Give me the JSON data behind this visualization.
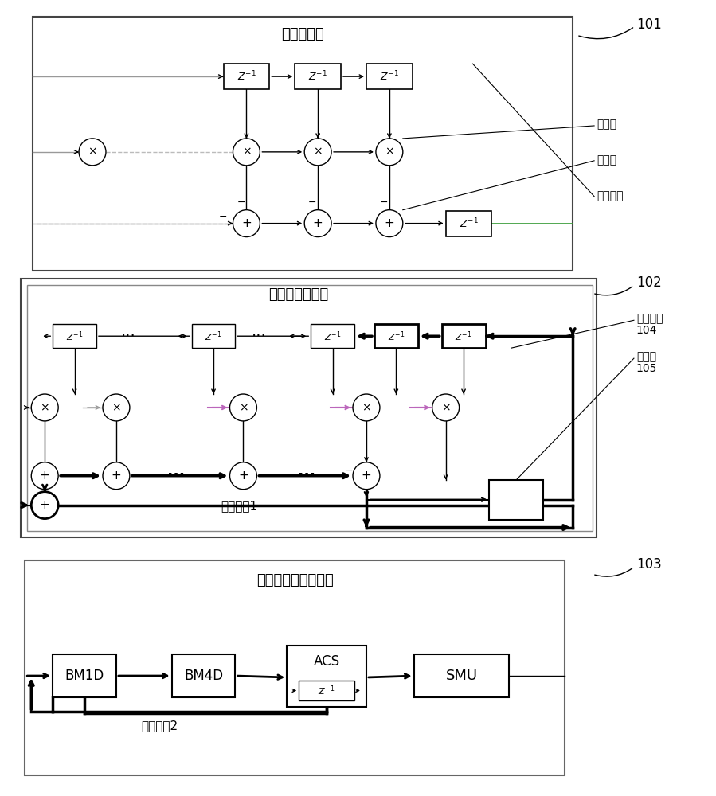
{
  "bg_color": "#ffffff",
  "block1_title": "前馈均衡器",
  "block1_label": "101",
  "block2_title": "判决反馈均衡器",
  "block2_label": "102",
  "block3_title": "并行判决反馈解码器",
  "block3_label": "103",
  "label_multiplier": "乘法器",
  "label_adder": "加法器",
  "label_delay": "延时单元",
  "label_delay104": "延时单元",
  "label_delay104_num": "104",
  "label_decider": "判决器",
  "label_decider_num": "105",
  "label_key_path1": "关键路径1",
  "label_key_path2": "关键路径2"
}
